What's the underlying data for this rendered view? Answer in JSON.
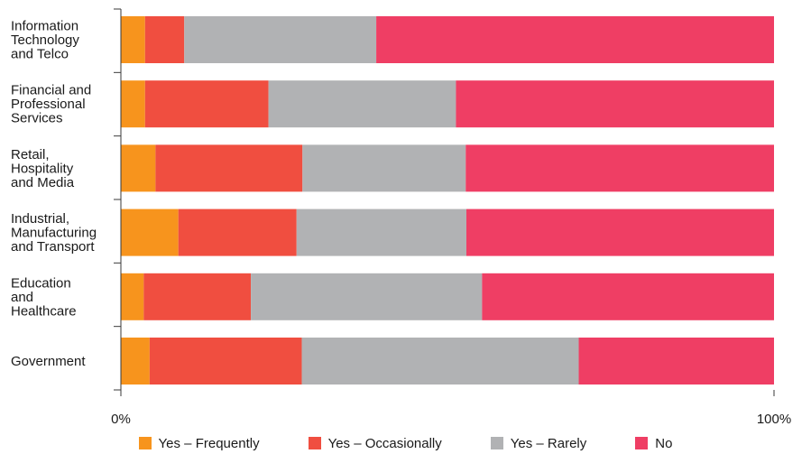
{
  "chart_data": {
    "type": "bar",
    "orientation": "horizontal",
    "stacked": true,
    "normalized": true,
    "categories": [
      [
        "Information",
        "Technology",
        "and Telco"
      ],
      [
        "Financial and",
        "Professional",
        "Services"
      ],
      [
        "Retail,",
        "Hospitality",
        "and Media"
      ],
      [
        "Industrial,",
        "Manufacturing",
        "and Transport"
      ],
      [
        "Education",
        "and",
        "Healthcare"
      ],
      [
        "Government"
      ]
    ],
    "series": [
      {
        "name": "Yes – Frequently",
        "color": "#f7941d",
        "values": [
          3.7,
          3.7,
          5.3,
          8.8,
          3.5,
          4.4
        ]
      },
      {
        "name": "Yes – Occasionally",
        "color": "#f04e40",
        "values": [
          6.0,
          18.9,
          22.5,
          18.1,
          16.4,
          23.3
        ]
      },
      {
        "name": "Yes – Rarely",
        "color": "#b1b2b4",
        "values": [
          29.4,
          28.7,
          25.0,
          26.0,
          35.4,
          42.4
        ]
      },
      {
        "name": "No",
        "color": "#ef3e64",
        "values": [
          60.9,
          48.7,
          47.2,
          47.1,
          44.7,
          29.9
        ]
      }
    ],
    "xlim": [
      0,
      100
    ],
    "x_ticks": [
      "0%",
      "100%"
    ],
    "grid": false,
    "legend_position": "bottom"
  }
}
